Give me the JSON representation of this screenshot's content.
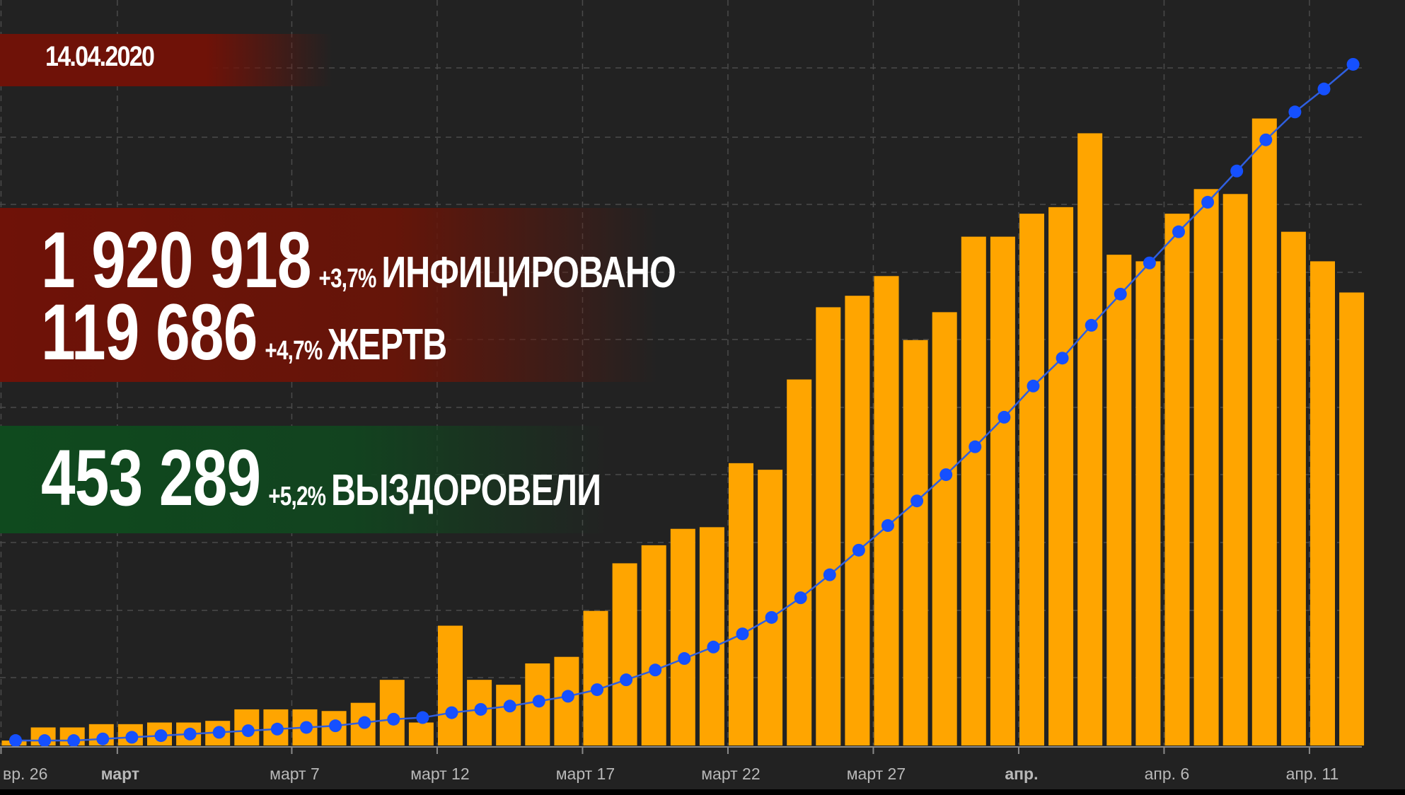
{
  "date": "14.04.2020",
  "stats": {
    "infected": {
      "value": "1 920 918",
      "change": "+3,7%",
      "label": "ИНФИЦИРОВАНО"
    },
    "deaths": {
      "value": "119 686",
      "change": "+4,7%",
      "label": "ЖЕРТВ"
    },
    "recovered": {
      "value": "453 289",
      "change": "+5,2%",
      "label": "ВЫЗДОРОВЕЛИ"
    }
  },
  "colors": {
    "background": "#222222",
    "bar": "#FFA500",
    "line": "#2f5fe0",
    "point": "#1550ff",
    "grid": "#4a4a4a",
    "axis_text": "#b8b8b8",
    "red_band": "#6f1208",
    "green_band": "#0f4a1e"
  },
  "chart_data": {
    "type": "bar",
    "title": "",
    "xlabel": "",
    "ylabel": "",
    "grid": true,
    "x_ticks": [
      {
        "label": "вр. 26",
        "index": 0,
        "bold": false
      },
      {
        "label": "март",
        "index": 4,
        "bold": true
      },
      {
        "label": "март 7",
        "index": 10,
        "bold": false
      },
      {
        "label": "март 12",
        "index": 15,
        "bold": false
      },
      {
        "label": "март 17",
        "index": 20,
        "bold": false
      },
      {
        "label": "март 22",
        "index": 25,
        "bold": false
      },
      {
        "label": "март 27",
        "index": 30,
        "bold": false
      },
      {
        "label": "апр.",
        "index": 35,
        "bold": true
      },
      {
        "label": "апр. 6",
        "index": 40,
        "bold": false
      },
      {
        "label": "апр. 11",
        "index": 45,
        "bold": false
      }
    ],
    "series": [
      {
        "type": "bar",
        "values": [
          0.3,
          1.1,
          1.1,
          1.3,
          1.3,
          1.4,
          1.4,
          1.5,
          2.2,
          2.2,
          2.2,
          2.1,
          2.6,
          4.0,
          1.4,
          7.3,
          4.0,
          3.7,
          5.0,
          5.4,
          8.2,
          11.1,
          12.2,
          13.2,
          13.3,
          17.2,
          16.8,
          22.3,
          26.7,
          27.4,
          28.6,
          24.7,
          26.4,
          31.0,
          31.0,
          32.4,
          32.8,
          37.3,
          29.9,
          29.5,
          32.4,
          33.9,
          33.6,
          38.2,
          31.3,
          29.5,
          27.6
        ]
      },
      {
        "type": "line",
        "values": [
          0.3,
          0.3,
          0.3,
          0.4,
          0.5,
          0.6,
          0.7,
          0.8,
          0.9,
          1.0,
          1.1,
          1.2,
          1.4,
          1.6,
          1.7,
          2.0,
          2.2,
          2.4,
          2.7,
          3.0,
          3.4,
          4.0,
          4.6,
          5.3,
          6.0,
          6.8,
          7.8,
          9.0,
          10.4,
          11.9,
          13.4,
          14.9,
          16.5,
          18.2,
          20.0,
          21.9,
          23.6,
          25.6,
          27.5,
          29.4,
          31.3,
          33.1,
          35.0,
          36.9,
          38.6,
          40.0,
          41.5
        ]
      }
    ],
    "ylim": [
      0,
      41.8
    ]
  }
}
